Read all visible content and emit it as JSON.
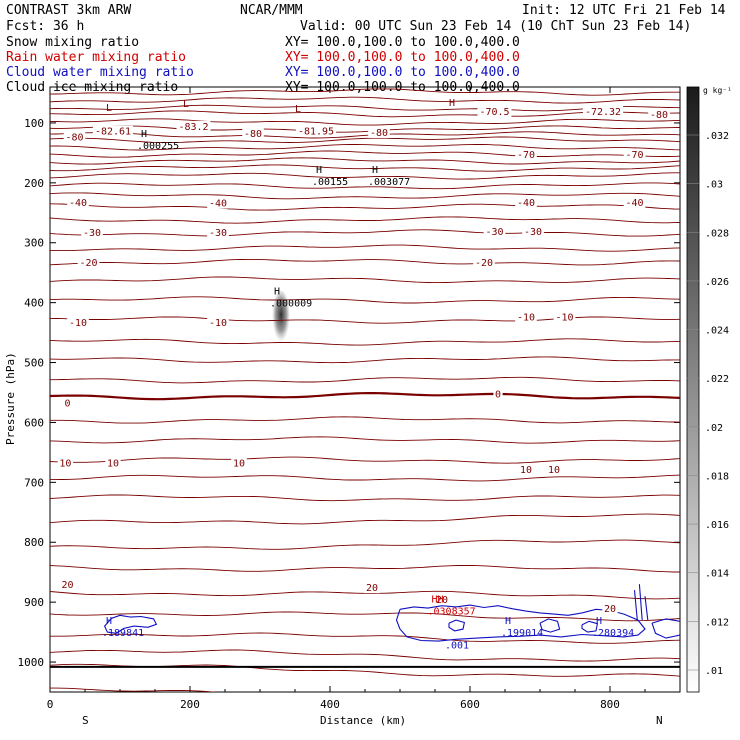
{
  "header": {
    "model": "CONTRAST  3km ARW",
    "center": "NCAR/MMM",
    "init": "Init: 12 UTC Fri 21 Feb 14",
    "fcst": "Fcst:   36 h",
    "valid": "Valid: 00 UTC Sun 23 Feb 14 (10 ChT Sun 23 Feb 14)"
  },
  "legend": [
    {
      "field": "Snow mixing ratio",
      "xy": "XY= 100.0,100.0 to 100.0,400.0",
      "color": "#000000"
    },
    {
      "field": "Rain water mixing ratio",
      "xy": "XY= 100.0,100.0 to 100.0,400.0",
      "color": "#d00000"
    },
    {
      "field": "Cloud water mixing ratio",
      "xy": "XY= 100.0,100.0 to 100.0,400.0",
      "color": "#1010c0"
    },
    {
      "field": "Cloud ice mixing ratio",
      "xy": "XY= 100.0,100.0 to 100.0,400.0",
      "color": "#000000"
    }
  ],
  "colorbar": {
    "unit": "g kg⁻¹",
    "labels": [
      ".032",
      ".03",
      ".028",
      ".026",
      ".024",
      ".022",
      ".02",
      ".018",
      ".016",
      ".014",
      ".012",
      ".01"
    ]
  },
  "chart_data": {
    "type": "contour",
    "xlabel": "Distance (km)",
    "ylabel": "Pressure (hPa)",
    "xlim": [
      0,
      900
    ],
    "ylim": [
      1050,
      40
    ],
    "xticks": [
      "0",
      "200",
      "400",
      "600",
      "800"
    ],
    "yticks": [
      "100",
      "200",
      "300",
      "400",
      "500",
      "600",
      "700",
      "800",
      "900",
      "1000"
    ],
    "end_labels": {
      "left": "S",
      "right": "N"
    },
    "isotherm_labels": [
      {
        "text": "-82.61",
        "x": 90,
        "p": 118
      },
      {
        "text": "-83.2",
        "x": 205,
        "p": 110
      },
      {
        "text": "-81.95",
        "x": 380,
        "p": 118
      },
      {
        "text": "-70.5",
        "x": 635,
        "p": 85
      },
      {
        "text": "-72.32",
        "x": 790,
        "p": 85
      },
      {
        "text": "-80",
        "x": 35,
        "p": 128
      },
      {
        "text": "-80",
        "x": 290,
        "p": 122
      },
      {
        "text": "-80",
        "x": 470,
        "p": 120
      },
      {
        "text": "-80",
        "x": 870,
        "p": 90
      },
      {
        "text": "-70",
        "x": 680,
        "p": 157
      },
      {
        "text": "-70",
        "x": 835,
        "p": 157
      },
      {
        "text": "-40",
        "x": 40,
        "p": 237
      },
      {
        "text": "-40",
        "x": 240,
        "p": 238
      },
      {
        "text": "-40",
        "x": 680,
        "p": 237
      },
      {
        "text": "-40",
        "x": 835,
        "p": 237
      },
      {
        "text": "-30",
        "x": 60,
        "p": 287
      },
      {
        "text": "-30",
        "x": 240,
        "p": 287
      },
      {
        "text": "-30",
        "x": 635,
        "p": 285
      },
      {
        "text": "-30",
        "x": 690,
        "p": 285
      },
      {
        "text": "-20",
        "x": 55,
        "p": 337
      },
      {
        "text": "-20",
        "x": 620,
        "p": 337
      },
      {
        "text": "-10",
        "x": 40,
        "p": 437
      },
      {
        "text": "-10",
        "x": 240,
        "p": 437
      },
      {
        "text": "-10",
        "x": 680,
        "p": 428
      },
      {
        "text": "-10",
        "x": 735,
        "p": 428
      },
      {
        "text": "0",
        "x": 25,
        "p": 572
      },
      {
        "text": "0",
        "x": 640,
        "p": 557
      },
      {
        "text": "10",
        "x": 22,
        "p": 672
      },
      {
        "text": "10",
        "x": 90,
        "p": 672
      },
      {
        "text": "10",
        "x": 270,
        "p": 672
      },
      {
        "text": "10",
        "x": 680,
        "p": 683
      },
      {
        "text": "10",
        "x": 720,
        "p": 683
      },
      {
        "text": "20",
        "x": 25,
        "p": 875
      },
      {
        "text": "20",
        "x": 460,
        "p": 880
      },
      {
        "text": "20",
        "x": 560,
        "p": 900
      },
      {
        "text": "20",
        "x": 800,
        "p": 915
      }
    ],
    "extrema": [
      {
        "type": "L",
        "value": "",
        "x": 80,
        "p": 87,
        "color": "#7a0000"
      },
      {
        "type": "L",
        "value": "",
        "x": 190,
        "p": 80,
        "color": "#7a0000"
      },
      {
        "type": "L",
        "value": "",
        "x": 350,
        "p": 88,
        "color": "#7a0000"
      },
      {
        "type": "H",
        "value": "",
        "x": 570,
        "p": 78,
        "color": "#7a0000"
      },
      {
        "type": "H",
        "value": ".000255",
        "x": 130,
        "p": 130,
        "color": "#000000"
      },
      {
        "type": "H",
        "value": ".00155",
        "x": 380,
        "p": 190,
        "color": "#000000"
      },
      {
        "type": "H",
        "value": ".003077",
        "x": 460,
        "p": 190,
        "color": "#000000"
      },
      {
        "type": "H",
        "value": ".000009",
        "x": 320,
        "p": 393,
        "color": "#000000"
      },
      {
        "type": "H",
        "value": ".189841",
        "x": 80,
        "p": 943,
        "color": "#1010c0"
      },
      {
        "type": "H",
        "value": ".199014",
        "x": 650,
        "p": 943,
        "color": "#1010c0"
      },
      {
        "type": "H",
        "value": ".280394",
        "x": 780,
        "p": 943,
        "color": "#1010c0"
      },
      {
        "type": "HH",
        "value": ".0308357",
        "x": 545,
        "p": 907,
        "color": "#d00000"
      },
      {
        "type": "",
        "value": ".001",
        "x": 570,
        "p": 964,
        "color": "#1010c0"
      }
    ],
    "snow_shading": {
      "x": 330,
      "p_top": 380,
      "p_bottom": 470,
      "max_value": ".01"
    }
  }
}
